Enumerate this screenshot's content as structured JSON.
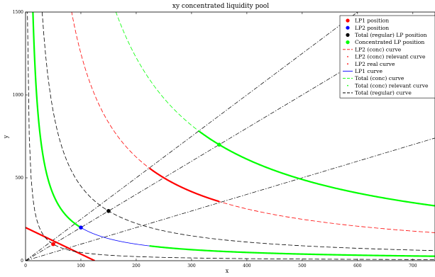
{
  "chart_data": {
    "type": "line",
    "title": "xy concentrated liquidity pool",
    "xlabel": "x",
    "ylabel": "y",
    "xlim": [
      0,
      740
    ],
    "ylim": [
      0,
      1500
    ],
    "x_ticks": [
      0,
      100,
      200,
      300,
      400,
      500,
      600,
      700
    ],
    "y_ticks": [
      0,
      500,
      1000,
      1500
    ],
    "grid": false,
    "legend_position": "top-right",
    "series": [
      {
        "name": "LP1 position",
        "kind": "point",
        "color": "#ff0000",
        "points": [
          [
            50,
            100
          ]
        ]
      },
      {
        "name": "LP2 position",
        "kind": "point",
        "color": "#0000ff",
        "points": [
          [
            100,
            200
          ]
        ]
      },
      {
        "name": "Total (regular) LP position",
        "kind": "point",
        "color": "#000000",
        "points": [
          [
            150,
            300
          ]
        ]
      },
      {
        "name": "Concentrated LP position",
        "kind": "point",
        "color": "#00ff00",
        "points": [
          [
            350,
            700
          ]
        ]
      },
      {
        "name": "LP2 (conc) curve",
        "kind": "line",
        "color": "#ff0000",
        "dash": "dashed",
        "curve": {
          "k": 125000,
          "x_range": [
            83,
            740
          ]
        }
      },
      {
        "name": "LP2 (conc) relevant curve",
        "kind": "line",
        "color": "#ff0000",
        "dash": "solid",
        "width": 2.2,
        "curve": {
          "k": 125000,
          "x_range": [
            224,
            350
          ]
        }
      },
      {
        "name": "LP2 real curve",
        "kind": "line",
        "color": "#ff0000",
        "dash": "solid",
        "width": 2.2,
        "curve": {
          "line": [
            200,
            1.6
          ],
          "x_range": [
            0,
            125
          ]
        }
      },
      {
        "name": "LP1 curve",
        "kind": "line",
        "color": "#0000ff",
        "dash": "solid",
        "curve": {
          "k": 20000,
          "x_range": [
            100,
            224
          ]
        }
      },
      {
        "name": "Total (conc) curve",
        "kind": "line",
        "color": "#00ff00",
        "dash": "dashed",
        "curve": {
          "k": 245000,
          "x_range": [
            163,
            740
          ]
        }
      },
      {
        "name": "Total (conc) relevant curve",
        "kind": "line",
        "color": "#00ff00",
        "dash": "solid",
        "width": 2.2,
        "curve": {
          "k": 245000,
          "x_range": [
            313,
            740
          ]
        },
        "extra": [
          {
            "k": 20000,
            "x_range": [
              13,
              100
            ]
          },
          {
            "k": 20000,
            "x_range": [
              224,
              740
            ]
          }
        ]
      },
      {
        "name": "Total (regular) curve",
        "kind": "line",
        "color": "#000000",
        "dash": "dashed",
        "curve": {
          "k": 45000,
          "x_range": [
            30,
            740
          ]
        },
        "extra": [
          {
            "k": 5000,
            "x_range": [
              3.3,
              740
            ]
          }
        ]
      }
    ],
    "reference_lines": [
      {
        "slope": 2.5,
        "color": "#000000",
        "dash": "dashdot"
      },
      {
        "slope": 2,
        "color": "#000000",
        "dash": "dashdot"
      },
      {
        "slope": 1,
        "color": "#000000",
        "dash": "dashdot"
      }
    ]
  }
}
